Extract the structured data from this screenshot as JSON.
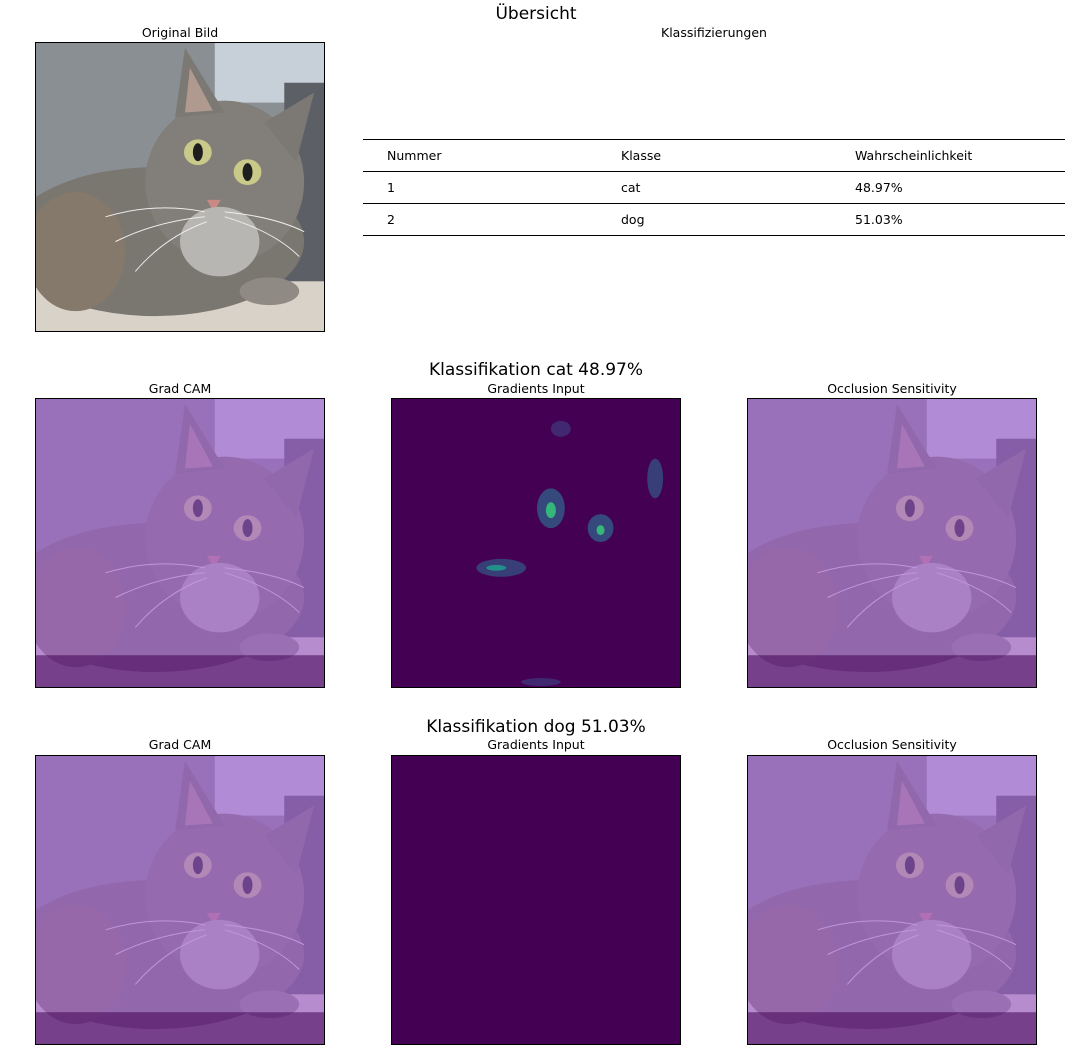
{
  "overview": {
    "title": "Übersicht",
    "original_title": "Original Bild",
    "table_title": "Klassifizierungen",
    "table": {
      "headers": [
        "Nummer",
        "Klasse",
        "Wahrscheinlichkeit"
      ],
      "rows": [
        [
          "1",
          "cat",
          "48.97%"
        ],
        [
          "2",
          "dog",
          "51.03%"
        ]
      ]
    }
  },
  "sections": [
    {
      "title": "Klassifikation cat 48.97%",
      "panels": [
        "Grad CAM",
        "Gradients Input",
        "Occlusion Sensitivity"
      ]
    },
    {
      "title": "Klassifikation dog 51.03%",
      "panels": [
        "Grad CAM",
        "Gradients Input",
        "Occlusion Sensitivity"
      ]
    }
  ],
  "colors": {
    "heatmap_base": "#440154",
    "overlay_purple": "#a25ed3",
    "highlight_teal": "#21908c",
    "highlight_yellow": "#fde725"
  }
}
